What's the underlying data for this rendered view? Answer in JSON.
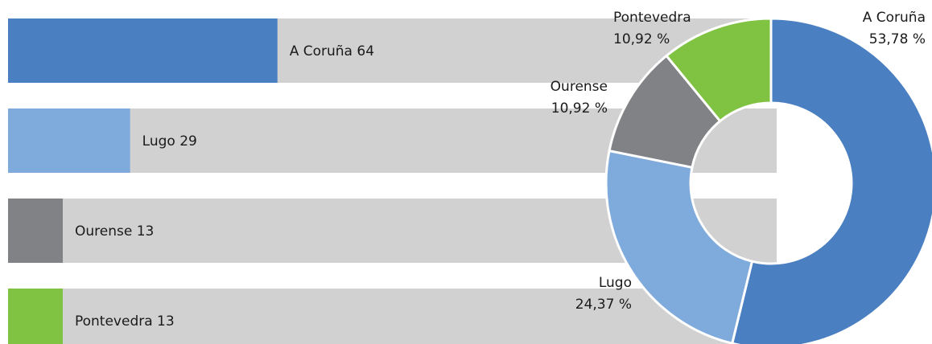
{
  "chart_data": [
    {
      "type": "bar",
      "categories": [
        "A Coruña",
        "Lugo",
        "Ourense",
        "Pontevedra"
      ],
      "values": [
        64,
        29,
        13,
        13
      ],
      "value_labels": [
        "A Coruña 64",
        "Lugo 29",
        "Ourense 13",
        "Pontevedra 13"
      ],
      "colors": [
        "#4a7fc1",
        "#7faadc",
        "#808285",
        "#80c342"
      ],
      "track_color": "#d1d1d1"
    },
    {
      "type": "donut",
      "categories": [
        "A Coruña",
        "Lugo",
        "Ourense",
        "Pontevedra"
      ],
      "values": [
        53.78,
        24.37,
        10.92,
        10.92
      ],
      "value_labels": [
        "53,78 %",
        "24,37 %",
        "10,92 %",
        "10,92 %"
      ],
      "colors": [
        "#4a7fc1",
        "#7faadc",
        "#808285",
        "#80c342"
      ]
    }
  ]
}
